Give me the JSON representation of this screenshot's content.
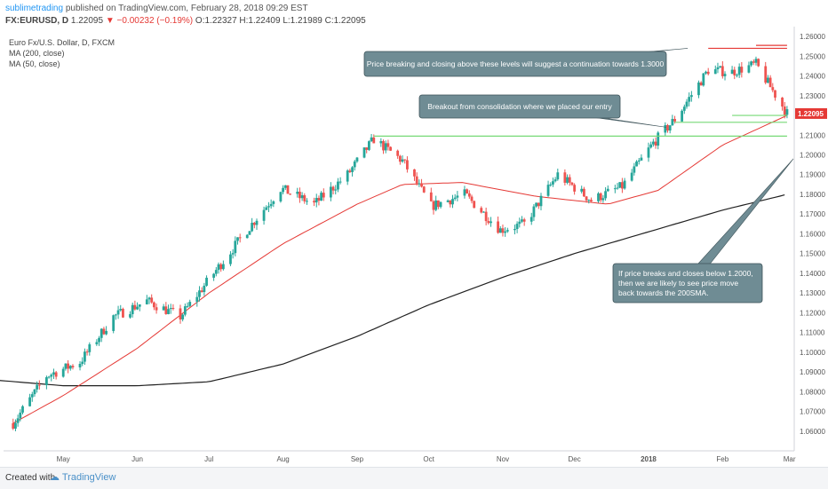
{
  "header": {
    "user": "sublimetrading",
    "published": " published on TradingView.com, February 28, 2018 09:29 EST",
    "symbol": "FX:EURUSD, D",
    "last": "1.22095",
    "change": "▼ −0.00232 (−0.19%)",
    "ohlc": "O:1.22327 H:1.22409 L:1.21989 C:1.22095"
  },
  "legend": {
    "title": "Euro Fx/U.S. Dollar, D, FXCM",
    "ma200": "MA (200, close)",
    "ma50": "MA (50, close)"
  },
  "footer": {
    "created_with": "Created with",
    "brand": "TradingView"
  },
  "colors": {
    "up": "#26a69a",
    "down": "#ef5350",
    "ma50": "#e53935",
    "ma200": "#212121",
    "green_level": "#76d976",
    "red_level": "#e53935",
    "annotation_bg": "#6f8c94",
    "price_tag": "#e53935"
  },
  "chart_data": {
    "type": "candlestick",
    "symbol": "FX:EURUSD",
    "timeframe": "D",
    "ylim": [
      1.05,
      1.265
    ],
    "y_ticks": [
      "1.06000",
      "1.07000",
      "1.08000",
      "1.09000",
      "1.10000",
      "1.11000",
      "1.12000",
      "1.13000",
      "1.14000",
      "1.15000",
      "1.16000",
      "1.17000",
      "1.18000",
      "1.19000",
      "1.20000",
      "1.21000",
      "1.22000",
      "1.23000",
      "1.24000",
      "1.25000",
      "1.26000"
    ],
    "x_ticks": [
      "May",
      "Jun",
      "Jul",
      "Aug",
      "Sep",
      "Oct",
      "Nov",
      "Dec",
      "2018",
      "Feb",
      "Mar"
    ],
    "last_price": "1.22095",
    "price_knots": [
      [
        "2017-04-10",
        1.064
      ],
      [
        "2017-04-24",
        1.088
      ],
      [
        "2017-05-08",
        1.095
      ],
      [
        "2017-05-22",
        1.118
      ],
      [
        "2017-06-05",
        1.126
      ],
      [
        "2017-06-19",
        1.118
      ],
      [
        "2017-07-03",
        1.14
      ],
      [
        "2017-07-17",
        1.162
      ],
      [
        "2017-07-31",
        1.183
      ],
      [
        "2017-08-14",
        1.175
      ],
      [
        "2017-08-28",
        1.19
      ],
      [
        "2017-09-08",
        1.208
      ],
      [
        "2017-09-20",
        1.197
      ],
      [
        "2017-10-02",
        1.174
      ],
      [
        "2017-10-16",
        1.18
      ],
      [
        "2017-10-31",
        1.162
      ],
      [
        "2017-11-10",
        1.165
      ],
      [
        "2017-11-24",
        1.19
      ],
      [
        "2017-12-08",
        1.177
      ],
      [
        "2017-12-21",
        1.184
      ],
      [
        "2018-01-03",
        1.206
      ],
      [
        "2018-01-12",
        1.218
      ],
      [
        "2018-01-26",
        1.243
      ],
      [
        "2018-02-05",
        1.242
      ],
      [
        "2018-02-15",
        1.246
      ],
      [
        "2018-02-28",
        1.221
      ]
    ],
    "ma50_knots": [
      [
        "2017-04-10",
        1.064
      ],
      [
        "2017-05-01",
        1.078
      ],
      [
        "2017-06-01",
        1.102
      ],
      [
        "2017-07-01",
        1.13
      ],
      [
        "2017-08-01",
        1.155
      ],
      [
        "2017-09-01",
        1.175
      ],
      [
        "2017-09-20",
        1.185
      ],
      [
        "2017-10-15",
        1.186
      ],
      [
        "2017-11-15",
        1.179
      ],
      [
        "2017-12-15",
        1.175
      ],
      [
        "2018-01-05",
        1.182
      ],
      [
        "2018-02-01",
        1.205
      ],
      [
        "2018-02-28",
        1.22
      ]
    ],
    "ma200_knots": [
      [
        "2017-04-01",
        1.086
      ],
      [
        "2017-05-01",
        1.083
      ],
      [
        "2017-06-01",
        1.083
      ],
      [
        "2017-07-01",
        1.085
      ],
      [
        "2017-08-01",
        1.094
      ],
      [
        "2017-09-01",
        1.108
      ],
      [
        "2017-10-01",
        1.124
      ],
      [
        "2017-11-01",
        1.138
      ],
      [
        "2017-12-01",
        1.15
      ],
      [
        "2018-01-01",
        1.161
      ],
      [
        "2018-02-01",
        1.172
      ],
      [
        "2018-02-28",
        1.18
      ]
    ],
    "levels": [
      {
        "color": "green",
        "y": 1.2095,
        "from": "2017-09-08",
        "to": "2018-02-28"
      },
      {
        "color": "green",
        "y": 1.2165,
        "from": "2018-01-12",
        "to": "2018-02-28"
      },
      {
        "color": "green",
        "y": 1.22,
        "from": "2018-02-05",
        "to": "2018-02-28"
      },
      {
        "color": "red",
        "y": 1.254,
        "from": "2018-01-26",
        "to": "2018-02-28"
      },
      {
        "color": "red",
        "y": 1.2555,
        "from": "2018-02-15",
        "to": "2018-02-28"
      }
    ],
    "annotations": [
      {
        "text": [
          "Price breaking and closing above these levels will suggest a continuation towards 1.3000"
        ],
        "points_to": [
          "2018-01-26",
          1.254
        ]
      },
      {
        "text": [
          "Breakout from consolidation where we placed our entry"
        ],
        "points_to": [
          "2018-01-15",
          1.214
        ]
      },
      {
        "text": [
          "If price breaks and closes below 1.2000,",
          "then we are likely to see price move",
          "back towards the 200SMA."
        ],
        "points_to": [
          "2018-02-26",
          1.198
        ]
      }
    ]
  }
}
